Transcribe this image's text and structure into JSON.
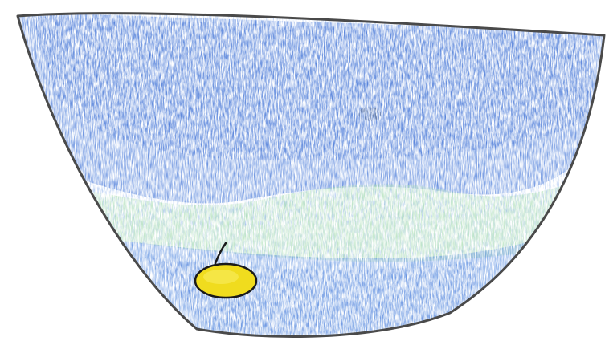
{
  "drawing": {
    "description_tags": [
      "crayon-drawing",
      "bowl-shape",
      "blue-water",
      "green-band",
      "yellow-object",
      "dark-spot"
    ],
    "colors": {
      "paper": "#ffffff",
      "outline": "#4a4a4a",
      "blue_dark": "#3f72d6",
      "blue_mid": "#5b8fe0",
      "blue_light": "#9dbcef",
      "green": "#9fd8a8",
      "green_light": "#c6ead0",
      "yellow": "#f0dc1e",
      "yellow_outline": "#1a1a1a",
      "spot": "#5a6472"
    }
  }
}
